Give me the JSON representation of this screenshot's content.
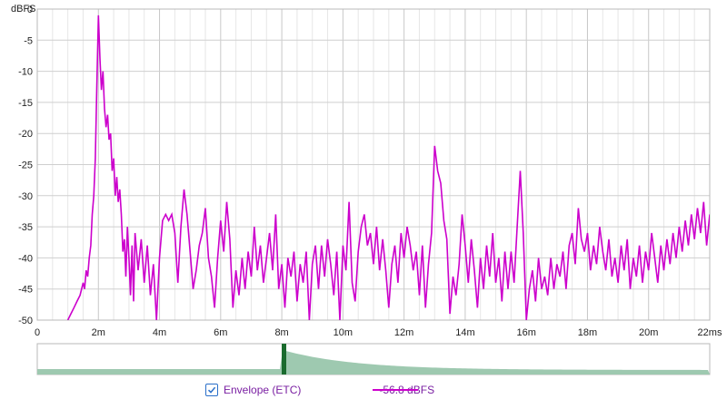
{
  "chart_data": {
    "type": "line",
    "title": "",
    "xlabel": "",
    "ylabel": "dBFS",
    "x_unit_label": "ms",
    "xlim": [
      0,
      22
    ],
    "ylim": [
      -50,
      0
    ],
    "x_ticks": [
      {
        "v": 0,
        "label": "0"
      },
      {
        "v": 2,
        "label": "2m"
      },
      {
        "v": 4,
        "label": "4m"
      },
      {
        "v": 6,
        "label": "6m"
      },
      {
        "v": 8,
        "label": "8m"
      },
      {
        "v": 10,
        "label": "10m"
      },
      {
        "v": 12,
        "label": "12m"
      },
      {
        "v": 14,
        "label": "14m"
      },
      {
        "v": 16,
        "label": "16m"
      },
      {
        "v": 18,
        "label": "18m"
      },
      {
        "v": 20,
        "label": "20m"
      },
      {
        "v": 22,
        "label": "22ms"
      }
    ],
    "y_ticks": [
      {
        "v": 0,
        "label": "0"
      },
      {
        "v": -5,
        "label": "-5"
      },
      {
        "v": -10,
        "label": "-10"
      },
      {
        "v": -15,
        "label": "-15"
      },
      {
        "v": -20,
        "label": "-20"
      },
      {
        "v": -25,
        "label": "-25"
      },
      {
        "v": -30,
        "label": "-30"
      },
      {
        "v": -35,
        "label": "-35"
      },
      {
        "v": -40,
        "label": "-40"
      },
      {
        "v": -45,
        "label": "-45"
      },
      {
        "v": -50,
        "label": "-50"
      }
    ],
    "grid": true,
    "series": [
      {
        "name": "Envelope (ETC)",
        "color": "#cc00cc",
        "points": [
          [
            1.0,
            -50
          ],
          [
            1.1,
            -49
          ],
          [
            1.2,
            -48
          ],
          [
            1.3,
            -47
          ],
          [
            1.4,
            -46
          ],
          [
            1.5,
            -44
          ],
          [
            1.55,
            -45
          ],
          [
            1.6,
            -42
          ],
          [
            1.65,
            -43
          ],
          [
            1.7,
            -40
          ],
          [
            1.75,
            -38
          ],
          [
            1.8,
            -33
          ],
          [
            1.85,
            -30
          ],
          [
            1.9,
            -24
          ],
          [
            1.95,
            -12
          ],
          [
            2.0,
            -1
          ],
          [
            2.05,
            -8
          ],
          [
            2.1,
            -13
          ],
          [
            2.15,
            -10
          ],
          [
            2.2,
            -16
          ],
          [
            2.25,
            -19
          ],
          [
            2.3,
            -17
          ],
          [
            2.35,
            -21
          ],
          [
            2.4,
            -20
          ],
          [
            2.45,
            -26
          ],
          [
            2.5,
            -24
          ],
          [
            2.55,
            -30
          ],
          [
            2.6,
            -27
          ],
          [
            2.65,
            -31
          ],
          [
            2.7,
            -29
          ],
          [
            2.75,
            -33
          ],
          [
            2.8,
            -39
          ],
          [
            2.85,
            -37
          ],
          [
            2.9,
            -43
          ],
          [
            2.95,
            -35
          ],
          [
            3.0,
            -40
          ],
          [
            3.05,
            -46
          ],
          [
            3.1,
            -38
          ],
          [
            3.15,
            -47
          ],
          [
            3.2,
            -36
          ],
          [
            3.3,
            -42
          ],
          [
            3.4,
            -37
          ],
          [
            3.5,
            -44
          ],
          [
            3.6,
            -38
          ],
          [
            3.7,
            -46
          ],
          [
            3.8,
            -41
          ],
          [
            3.9,
            -50
          ],
          [
            4.0,
            -40
          ],
          [
            4.1,
            -34
          ],
          [
            4.2,
            -33
          ],
          [
            4.3,
            -34
          ],
          [
            4.4,
            -33
          ],
          [
            4.5,
            -36
          ],
          [
            4.6,
            -44
          ],
          [
            4.7,
            -35
          ],
          [
            4.8,
            -29
          ],
          [
            4.9,
            -33
          ],
          [
            5.0,
            -39
          ],
          [
            5.1,
            -45
          ],
          [
            5.2,
            -42
          ],
          [
            5.3,
            -38
          ],
          [
            5.4,
            -36
          ],
          [
            5.5,
            -32
          ],
          [
            5.6,
            -40
          ],
          [
            5.7,
            -43
          ],
          [
            5.8,
            -48
          ],
          [
            5.9,
            -40
          ],
          [
            6.0,
            -34
          ],
          [
            6.1,
            -39
          ],
          [
            6.2,
            -31
          ],
          [
            6.3,
            -37
          ],
          [
            6.4,
            -48
          ],
          [
            6.5,
            -42
          ],
          [
            6.6,
            -46
          ],
          [
            6.7,
            -40
          ],
          [
            6.8,
            -45
          ],
          [
            6.9,
            -39
          ],
          [
            7.0,
            -43
          ],
          [
            7.1,
            -35
          ],
          [
            7.2,
            -42
          ],
          [
            7.3,
            -38
          ],
          [
            7.4,
            -44
          ],
          [
            7.5,
            -40
          ],
          [
            7.6,
            -36
          ],
          [
            7.7,
            -42
          ],
          [
            7.8,
            -33
          ],
          [
            7.9,
            -45
          ],
          [
            8.0,
            -41
          ],
          [
            8.1,
            -48
          ],
          [
            8.2,
            -40
          ],
          [
            8.3,
            -43
          ],
          [
            8.4,
            -39
          ],
          [
            8.5,
            -47
          ],
          [
            8.6,
            -41
          ],
          [
            8.7,
            -44
          ],
          [
            8.8,
            -39
          ],
          [
            8.9,
            -50
          ],
          [
            9.0,
            -41
          ],
          [
            9.1,
            -38
          ],
          [
            9.2,
            -45
          ],
          [
            9.3,
            -38
          ],
          [
            9.4,
            -43
          ],
          [
            9.5,
            -37
          ],
          [
            9.6,
            -41
          ],
          [
            9.7,
            -46
          ],
          [
            9.8,
            -39
          ],
          [
            9.9,
            -50
          ],
          [
            10.0,
            -38
          ],
          [
            10.1,
            -42
          ],
          [
            10.2,
            -31
          ],
          [
            10.3,
            -44
          ],
          [
            10.4,
            -47
          ],
          [
            10.5,
            -39
          ],
          [
            10.6,
            -35
          ],
          [
            10.7,
            -33
          ],
          [
            10.8,
            -38
          ],
          [
            10.9,
            -36
          ],
          [
            11.0,
            -41
          ],
          [
            11.1,
            -35
          ],
          [
            11.2,
            -42
          ],
          [
            11.3,
            -37
          ],
          [
            11.4,
            -42
          ],
          [
            11.5,
            -48
          ],
          [
            11.6,
            -41
          ],
          [
            11.7,
            -38
          ],
          [
            11.8,
            -44
          ],
          [
            11.9,
            -36
          ],
          [
            12.0,
            -40
          ],
          [
            12.1,
            -35
          ],
          [
            12.2,
            -38
          ],
          [
            12.3,
            -42
          ],
          [
            12.4,
            -39
          ],
          [
            12.5,
            -46
          ],
          [
            12.6,
            -38
          ],
          [
            12.7,
            -48
          ],
          [
            12.8,
            -41
          ],
          [
            12.9,
            -36
          ],
          [
            13.0,
            -22
          ],
          [
            13.1,
            -26
          ],
          [
            13.2,
            -28
          ],
          [
            13.3,
            -34
          ],
          [
            13.4,
            -37
          ],
          [
            13.5,
            -49
          ],
          [
            13.6,
            -43
          ],
          [
            13.7,
            -46
          ],
          [
            13.8,
            -41
          ],
          [
            13.9,
            -33
          ],
          [
            14.0,
            -38
          ],
          [
            14.1,
            -44
          ],
          [
            14.2,
            -37
          ],
          [
            14.3,
            -42
          ],
          [
            14.4,
            -48
          ],
          [
            14.5,
            -40
          ],
          [
            14.6,
            -45
          ],
          [
            14.7,
            -38
          ],
          [
            14.8,
            -43
          ],
          [
            14.9,
            -36
          ],
          [
            15.0,
            -44
          ],
          [
            15.1,
            -40
          ],
          [
            15.2,
            -47
          ],
          [
            15.3,
            -39
          ],
          [
            15.4,
            -45
          ],
          [
            15.5,
            -39
          ],
          [
            15.6,
            -44
          ],
          [
            15.7,
            -35
          ],
          [
            15.8,
            -26
          ],
          [
            15.9,
            -36
          ],
          [
            16.0,
            -50
          ],
          [
            16.1,
            -45
          ],
          [
            16.2,
            -42
          ],
          [
            16.3,
            -47
          ],
          [
            16.4,
            -40
          ],
          [
            16.5,
            -45
          ],
          [
            16.6,
            -43
          ],
          [
            16.7,
            -46
          ],
          [
            16.8,
            -40
          ],
          [
            16.9,
            -45
          ],
          [
            17.0,
            -41
          ],
          [
            17.1,
            -43
          ],
          [
            17.2,
            -39
          ],
          [
            17.3,
            -45
          ],
          [
            17.4,
            -38
          ],
          [
            17.5,
            -36
          ],
          [
            17.6,
            -41
          ],
          [
            17.7,
            -32
          ],
          [
            17.8,
            -37
          ],
          [
            17.9,
            -39
          ],
          [
            18.0,
            -36
          ],
          [
            18.1,
            -42
          ],
          [
            18.2,
            -38
          ],
          [
            18.3,
            -41
          ],
          [
            18.4,
            -35
          ],
          [
            18.5,
            -39
          ],
          [
            18.6,
            -42
          ],
          [
            18.7,
            -37
          ],
          [
            18.8,
            -43
          ],
          [
            18.9,
            -40
          ],
          [
            19.0,
            -44
          ],
          [
            19.1,
            -38
          ],
          [
            19.2,
            -42
          ],
          [
            19.3,
            -37
          ],
          [
            19.4,
            -45
          ],
          [
            19.5,
            -40
          ],
          [
            19.6,
            -43
          ],
          [
            19.7,
            -38
          ],
          [
            19.8,
            -44
          ],
          [
            19.9,
            -39
          ],
          [
            20.0,
            -42
          ],
          [
            20.1,
            -36
          ],
          [
            20.2,
            -40
          ],
          [
            20.3,
            -44
          ],
          [
            20.4,
            -38
          ],
          [
            20.5,
            -42
          ],
          [
            20.6,
            -37
          ],
          [
            20.7,
            -41
          ],
          [
            20.8,
            -36
          ],
          [
            20.9,
            -40
          ],
          [
            21.0,
            -35
          ],
          [
            21.1,
            -39
          ],
          [
            21.2,
            -34
          ],
          [
            21.3,
            -38
          ],
          [
            21.4,
            -33
          ],
          [
            21.5,
            -37
          ],
          [
            21.6,
            -32
          ],
          [
            21.7,
            -36
          ],
          [
            21.8,
            -31
          ],
          [
            21.9,
            -38
          ],
          [
            22.0,
            -33
          ]
        ]
      }
    ]
  },
  "overview": {
    "fill_color": "#9ec9b0",
    "marker_color": "#1a6b2e"
  },
  "legend": {
    "checkbox_checked": true,
    "label": "Envelope (ETC)",
    "line_color": "#cc00cc",
    "value": "-56.8 dBFS"
  }
}
